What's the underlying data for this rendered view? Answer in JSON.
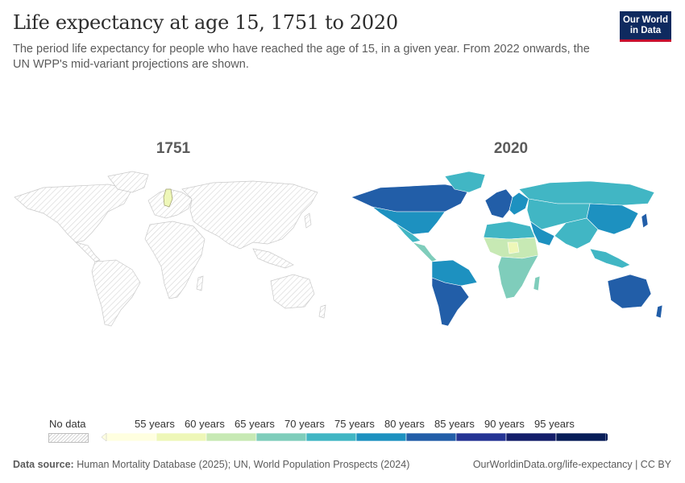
{
  "header": {
    "title": "Life expectancy at age 15, 1751 to 2020",
    "subtitle": "The period life expectancy for people who have reached the age of 15, in a given year. From 2022 onwards, the UN WPP's mid-variant projections are shown.",
    "logo_line1": "Our World",
    "logo_line2": "in Data"
  },
  "maps": [
    {
      "year_label": "1751"
    },
    {
      "year_label": "2020"
    }
  ],
  "legend": {
    "no_data_label": "No data",
    "ticks": [
      "55 years",
      "60 years",
      "65 years",
      "70 years",
      "75 years",
      "80 years",
      "85 years",
      "90 years",
      "95 years"
    ],
    "bins": [
      {
        "from": 50,
        "to": 55,
        "color": "#ffffe0"
      },
      {
        "from": 55,
        "to": 60,
        "color": "#eef7b8"
      },
      {
        "from": 60,
        "to": 65,
        "color": "#c7e9b4"
      },
      {
        "from": 65,
        "to": 70,
        "color": "#7fcdbb"
      },
      {
        "from": 70,
        "to": 75,
        "color": "#41b6c4"
      },
      {
        "from": 75,
        "to": 80,
        "color": "#1d91c0"
      },
      {
        "from": 80,
        "to": 85,
        "color": "#225ea8"
      },
      {
        "from": 85,
        "to": 90,
        "color": "#253494"
      },
      {
        "from": 90,
        "to": 95,
        "color": "#141e6a"
      },
      {
        "from": 95,
        "to": 100,
        "color": "#081d58"
      }
    ]
  },
  "footer": {
    "source_label": "Data source:",
    "source_text": "Human Mortality Database (2025); UN, World Population Prospects (2024)",
    "right_text": "OurWorldinData.org/life-expectancy | CC BY"
  },
  "colors": {
    "nodata_fill": "#f2f2f2",
    "nodata_stroke": "#d0d0d0",
    "sweden_1751": "#eef7b8"
  }
}
